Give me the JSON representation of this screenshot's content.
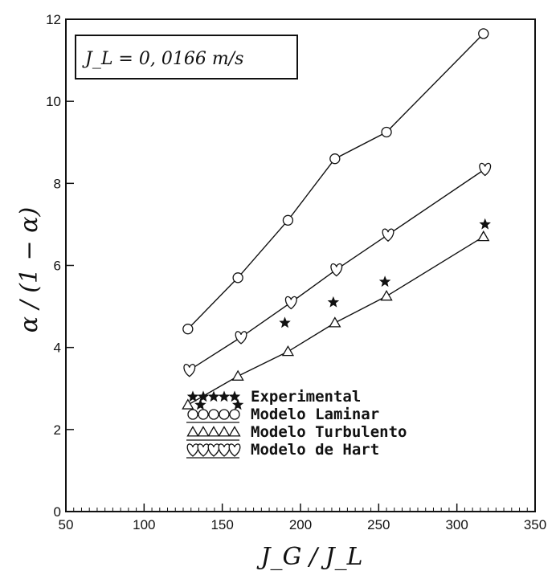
{
  "chart_data": {
    "type": "scatter",
    "xlabel": "J_G / J_L",
    "ylabel": "α / (1 − α)",
    "xlim": [
      50,
      350
    ],
    "ylim": [
      0,
      12
    ],
    "xticks": [
      50,
      100,
      150,
      200,
      250,
      300,
      350
    ],
    "yticks": [
      0,
      2,
      4,
      6,
      8,
      10,
      12
    ],
    "grid": false,
    "legend_position": "bottom-right",
    "annotation": "J_L = 0, 0166 m/s",
    "series": [
      {
        "name": "Experimental",
        "marker": "star",
        "x": [
          136,
          160,
          190,
          221,
          254,
          318
        ],
        "y": [
          2.6,
          2.6,
          4.6,
          5.1,
          5.6,
          7.0
        ]
      },
      {
        "name": "Modelo Laminar",
        "marker": "circle",
        "line": true,
        "x": [
          128,
          160,
          192,
          222,
          255,
          317
        ],
        "y": [
          4.45,
          5.7,
          7.1,
          8.6,
          9.25,
          11.65
        ]
      },
      {
        "name": "Modelo Turbulento",
        "marker": "triangle",
        "line": true,
        "x": [
          128,
          160,
          192,
          222,
          255,
          317
        ],
        "y": [
          2.6,
          3.3,
          3.9,
          4.6,
          5.25,
          6.7
        ]
      },
      {
        "name": "Modelo de Hart",
        "marker": "heart",
        "line": true,
        "x": [
          129,
          162,
          194,
          223,
          256,
          318
        ],
        "y": [
          3.45,
          4.25,
          5.1,
          5.9,
          6.75,
          8.35
        ]
      }
    ]
  }
}
